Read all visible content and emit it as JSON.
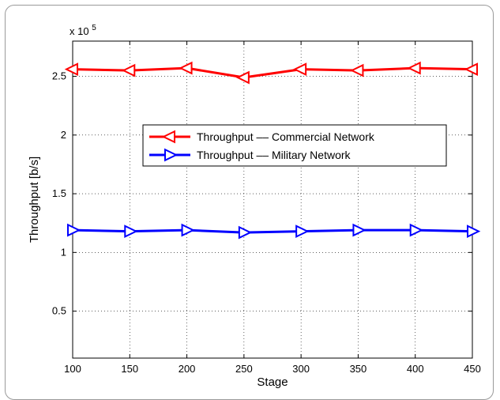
{
  "chart_data": {
    "type": "line",
    "title": "",
    "xlabel": "Stage",
    "ylabel": "Throughput [b/s]",
    "exponent_label": "x 10",
    "exponent_power": "5",
    "x": [
      100,
      150,
      200,
      250,
      300,
      350,
      400,
      450
    ],
    "xlim": [
      100,
      450
    ],
    "ylim": [
      0.1,
      2.8
    ],
    "y_scale_factor": 100000,
    "xticks": [
      100,
      150,
      200,
      250,
      300,
      350,
      400,
      450
    ],
    "xtick_labels": [
      "100",
      "150",
      "200",
      "250",
      "300",
      "350",
      "400",
      "450"
    ],
    "yticks": [
      0.5,
      1,
      1.5,
      2,
      2.5
    ],
    "ytick_labels": [
      "0.5",
      "1",
      "1.5",
      "2",
      "2.5"
    ],
    "grid": true,
    "legend_position": "center-right",
    "series": [
      {
        "name": "Throughput –– Commercial Network",
        "color": "#ff0000",
        "marker": "triangle-left",
        "values": [
          2.56,
          2.55,
          2.57,
          2.49,
          2.56,
          2.55,
          2.57,
          2.56
        ]
      },
      {
        "name": "Throughput –– Military Network",
        "color": "#0000ff",
        "marker": "triangle-right",
        "values": [
          1.19,
          1.18,
          1.19,
          1.17,
          1.18,
          1.19,
          1.19,
          1.18
        ]
      }
    ]
  }
}
